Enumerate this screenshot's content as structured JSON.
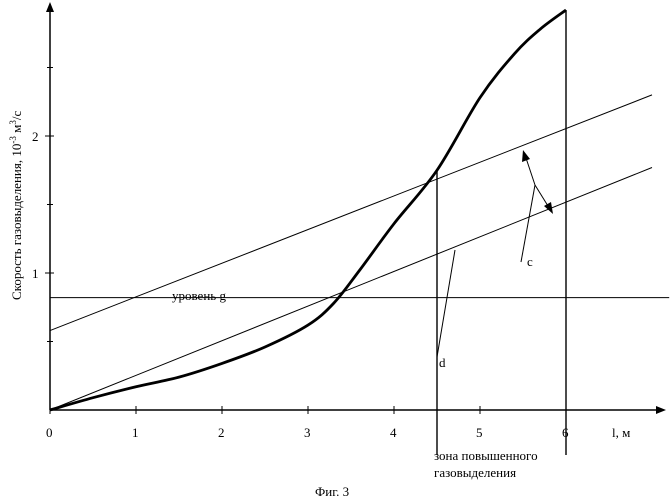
{
  "chart_data": {
    "type": "line",
    "title": "",
    "ylabel_text": "Скорость газовыделения, 10",
    "ylabel_exp": "-3",
    "ylabel_unit": " м",
    "ylabel_unit_exp": "3",
    "ylabel_tail": "/с",
    "xlabel": "l, м",
    "caption": "Фиг. 3",
    "xlim": [
      0,
      7.2
    ],
    "ylim": [
      0,
      3.0
    ],
    "x_ticks": [
      "0",
      "1",
      "2",
      "3",
      "4",
      "5",
      "6"
    ],
    "x_tick_values": [
      0,
      1,
      2,
      3,
      4,
      5,
      6
    ],
    "y_ticks": [
      "1",
      "2"
    ],
    "y_tick_values": [
      1,
      2
    ],
    "y_minor_tick_values": [
      0.5,
      1.5,
      2.5
    ],
    "series": [
      {
        "role": "main-curve",
        "x": [
          0,
          0.5,
          1,
          1.5,
          2,
          2.5,
          3,
          3.3,
          3.6,
          4.0,
          4.5,
          5.0,
          5.4,
          5.7,
          6.0
        ],
        "y": [
          0,
          0.09,
          0.17,
          0.24,
          0.34,
          0.46,
          0.62,
          0.78,
          1.02,
          1.36,
          1.75,
          2.28,
          2.6,
          2.78,
          2.92
        ]
      },
      {
        "role": "upper-line",
        "x": [
          0,
          7.0
        ],
        "y": [
          0.58,
          2.3
        ]
      },
      {
        "role": "lower-line",
        "x": [
          0,
          7.0
        ],
        "y": [
          0,
          1.77
        ]
      },
      {
        "role": "level-g",
        "x": [
          0,
          7.2
        ],
        "y": [
          0.82,
          0.82
        ]
      }
    ],
    "vertical_markers": [
      {
        "x": 4.5,
        "y_top": 1.75
      },
      {
        "x": 6.0,
        "y_top": 2.92
      }
    ],
    "annotations": {
      "level": "уровень g",
      "d": "d",
      "c": "c",
      "zone_line1": "зона повышенного",
      "zone_line2": "газовыделения"
    }
  }
}
